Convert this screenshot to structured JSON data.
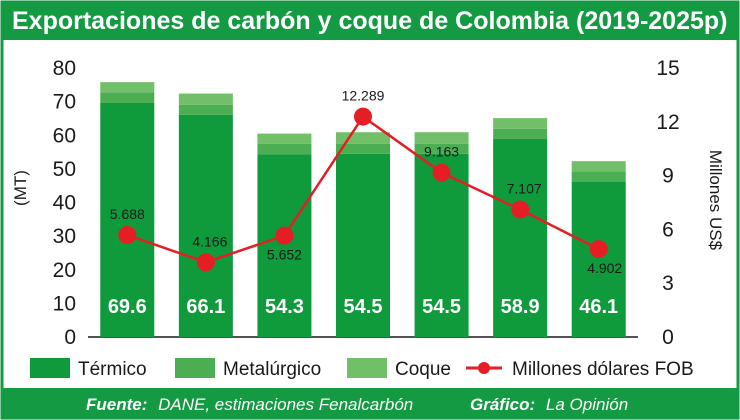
{
  "chart_data": {
    "type": "bar",
    "title": "Exportaciones de carbón y coque de Colombia (2019-2025p)",
    "ylabel": "(MT)",
    "y2label": "Millones US$",
    "ylim": [
      0,
      80
    ],
    "y2lim": [
      0,
      15
    ],
    "yticks": [
      0,
      10,
      20,
      30,
      40,
      50,
      60,
      70,
      80
    ],
    "y2ticks": [
      0,
      3,
      6,
      9,
      12,
      15
    ],
    "bar_labels": [
      "69.6",
      "66.1",
      "54.3",
      "54.5",
      "54.5",
      "58.9",
      "46.1"
    ],
    "series": [
      {
        "name": "Térmico",
        "values": [
          69.6,
          66.1,
          54.3,
          54.5,
          54.5,
          58.9,
          46.1
        ]
      },
      {
        "name": "Metalúrgico",
        "values": [
          3.2,
          3.0,
          3.2,
          3.0,
          3.0,
          3.0,
          3.2
        ]
      },
      {
        "name": "Coque",
        "values": [
          3.0,
          3.3,
          3.0,
          3.4,
          3.4,
          3.2,
          3.0
        ]
      }
    ],
    "line_series": {
      "name": "Millones dólares FOB",
      "values": [
        5.688,
        4.166,
        5.652,
        12.289,
        9.163,
        7.107,
        4.902
      ],
      "labels": [
        "5.688",
        "4.166",
        "5.652",
        "12.289",
        "9.163",
        "7.107",
        "4.902"
      ]
    },
    "colors": {
      "termico": "#0f9a3c",
      "metalurgico": "#4cae52",
      "coque": "#72bf6a",
      "line": "#e41e24",
      "frame": "#139a43"
    },
    "legend_position": "bottom",
    "grid": false
  },
  "footer": {
    "source_label": "Fuente:",
    "source_text": "DANE, estimaciones Fenalcarbón",
    "credit_label": "Gráfico:",
    "credit_text": "La Opinión"
  }
}
